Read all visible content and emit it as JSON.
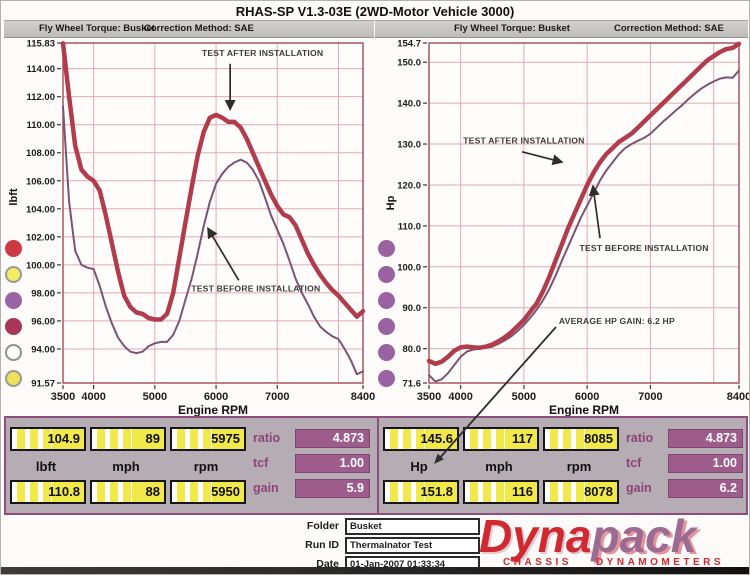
{
  "window": {
    "title": "RHAS-SP V1.3-03E (2WD-Motor Vehicle 3000)"
  },
  "header": {
    "left": {
      "torque_label": "Fly Wheel Torque: Busket",
      "correction_label": "Correction Method: SAE"
    },
    "right": {
      "torque_label": "Fly Wheel Torque: Busket",
      "correction_label": "Correction Method: SAE"
    }
  },
  "legend_dots": {
    "left": [
      {
        "fill": "#ce3a44",
        "ring": "none"
      },
      {
        "fill": "#f3ec63",
        "ring": "#999999"
      },
      {
        "fill": "#9a64a4",
        "ring": "none"
      },
      {
        "fill": "#a93658",
        "ring": "none"
      },
      {
        "fill": "#ffffff",
        "ring": "#909090"
      },
      {
        "fill": "#eee25a",
        "ring": "#999999"
      }
    ],
    "right": [
      {
        "fill": "#9a62a0",
        "ring": "none"
      },
      {
        "fill": "#9a62a0",
        "ring": "none"
      },
      {
        "fill": "#9a62a0",
        "ring": "none"
      },
      {
        "fill": "#9a62a0",
        "ring": "none"
      },
      {
        "fill": "#9a62a0",
        "ring": "none"
      },
      {
        "fill": "#9a62a0",
        "ring": "none"
      }
    ]
  },
  "chart_data": [
    {
      "type": "line",
      "title": "Fly Wheel Torque: Busket",
      "xlabel": "Engine RPM",
      "ylabel": "lbft",
      "xlim": [
        3500,
        8400
      ],
      "ylim": [
        91.57,
        115.83
      ],
      "x_start": 3500,
      "x_step": 100,
      "xticks": [
        [
          3500,
          "3500"
        ],
        [
          4000,
          "4000"
        ],
        [
          5000,
          "5000"
        ],
        [
          6000,
          "6000"
        ],
        [
          7000,
          "7000"
        ],
        [
          8400,
          "8400"
        ]
      ],
      "yticks": [
        [
          115.83,
          "115.83"
        ],
        [
          114,
          "114.00"
        ],
        [
          112,
          "112.00"
        ],
        [
          110,
          "110.00"
        ],
        [
          108,
          "108.00"
        ],
        [
          106,
          "106.00"
        ],
        [
          104,
          "104.00"
        ],
        [
          102,
          "102.00"
        ],
        [
          100,
          "100.00"
        ],
        [
          98,
          "98.00"
        ],
        [
          96,
          "96.00"
        ],
        [
          94,
          "94.00"
        ],
        [
          91.57,
          "91.57"
        ]
      ],
      "grid_x": [
        4000,
        5000,
        6000,
        7000,
        8000
      ],
      "grid_y": [
        94,
        96,
        98,
        100,
        102,
        104,
        106,
        108,
        110,
        112,
        114
      ],
      "series": [
        {
          "name": "TEST BEFORE INSTALLATION",
          "color_key": "before_curve",
          "stroke_width": 2,
          "values": [
            111.3,
            104.5,
            101.0,
            100.0,
            99.8,
            99.7,
            98.5,
            97.0,
            95.8,
            94.8,
            94.2,
            93.8,
            93.7,
            93.8,
            94.2,
            94.4,
            94.5,
            94.5,
            95.0,
            96.0,
            97.5,
            99.0,
            100.8,
            102.8,
            104.5,
            105.8,
            106.5,
            107.0,
            107.3,
            107.5,
            107.3,
            106.8,
            106.0,
            104.8,
            103.5,
            102.5,
            101.5,
            100.3,
            99.0,
            98.0,
            97.2,
            96.3,
            95.6,
            95.2,
            94.9,
            94.7,
            94.0,
            93.2,
            92.2,
            92.4
          ]
        },
        {
          "name": "TEST AFTER INSTALLATION",
          "color_key": "after_curve",
          "stroke_width": 4.5,
          "values": [
            115.8,
            112.0,
            108.5,
            106.8,
            106.3,
            106.0,
            105.3,
            103.5,
            101.5,
            99.5,
            97.8,
            97.0,
            96.6,
            96.5,
            96.2,
            96.1,
            96.1,
            96.5,
            98.0,
            100.5,
            103.0,
            105.5,
            107.8,
            109.5,
            110.5,
            110.7,
            110.5,
            110.2,
            110.2,
            109.8,
            109.0,
            108.0,
            107.0,
            106.0,
            105.0,
            104.2,
            103.6,
            103.4,
            102.8,
            101.8,
            100.8,
            100.0,
            99.3,
            98.7,
            98.2,
            97.8,
            97.3,
            96.8,
            96.3,
            96.7
          ]
        }
      ],
      "annotations": [
        {
          "text": "TEST AFTER INSTALLATION",
          "x": 6760,
          "y": 114.9,
          "arrow": [
            6230,
            114.35,
            6230,
            111.1
          ]
        },
        {
          "text": "TEST BEFORE INSTALLATION",
          "x": 6650,
          "y": 98.1,
          "arrow": [
            6370,
            98.9,
            5868,
            102.6
          ]
        }
      ]
    },
    {
      "type": "line",
      "title": "Fly Wheel Torque: Busket",
      "xlabel": "Engine RPM",
      "ylabel": "Hp",
      "xlim": [
        3500,
        8400
      ],
      "ylim": [
        71.6,
        154.7
      ],
      "x_start": 3500,
      "x_step": 100,
      "xticks": [
        [
          3500,
          "3500"
        ],
        [
          4000,
          "4000"
        ],
        [
          5000,
          "5000"
        ],
        [
          6000,
          "6000"
        ],
        [
          7000,
          "7000"
        ],
        [
          8400,
          "8400"
        ]
      ],
      "yticks": [
        [
          154.7,
          "154.7"
        ],
        [
          150,
          "150.0"
        ],
        [
          140,
          "140.0"
        ],
        [
          130,
          "130.0"
        ],
        [
          120,
          "120.0"
        ],
        [
          110,
          "110.0"
        ],
        [
          100,
          "100.0"
        ],
        [
          90,
          "90.0"
        ],
        [
          80,
          "80.0"
        ],
        [
          71.6,
          "71.6"
        ]
      ],
      "grid_x": [
        4000,
        5000,
        6000,
        7000,
        8000
      ],
      "grid_y": [
        80,
        90,
        100,
        110,
        120,
        130,
        140,
        150
      ],
      "series": [
        {
          "name": "TEST BEFORE INSTALLATION",
          "color_key": "before_curve",
          "stroke_width": 2,
          "values": [
            73.5,
            72.0,
            72.5,
            74.0,
            76.0,
            78.0,
            79.3,
            79.8,
            80.0,
            80.2,
            80.5,
            81.2,
            82.0,
            83.0,
            84.3,
            85.8,
            87.5,
            89.5,
            91.8,
            94.5,
            97.8,
            101.5,
            105.0,
            108.5,
            112.0,
            115.0,
            118.0,
            121.0,
            123.5,
            125.5,
            127.5,
            129.0,
            130.0,
            130.8,
            131.5,
            132.5,
            134.0,
            135.5,
            136.8,
            138.2,
            139.5,
            141.0,
            142.3,
            143.5,
            144.5,
            145.3,
            146.0,
            146.3,
            146.2,
            148.0
          ]
        },
        {
          "name": "TEST AFTER INSTALLATION",
          "color_key": "after_curve",
          "stroke_width": 4.5,
          "values": [
            77.0,
            76.3,
            76.8,
            78.0,
            79.5,
            80.3,
            80.5,
            80.3,
            80.2,
            80.5,
            81.0,
            81.8,
            82.8,
            84.0,
            85.5,
            87.0,
            89.0,
            91.0,
            94.0,
            97.5,
            101.5,
            105.5,
            109.5,
            113.0,
            116.5,
            120.0,
            123.0,
            125.5,
            127.5,
            129.0,
            130.5,
            131.5,
            132.5,
            134.0,
            135.5,
            137.0,
            138.5,
            140.0,
            141.5,
            143.0,
            144.5,
            146.0,
            147.5,
            149.0,
            150.5,
            151.5,
            152.5,
            153.2,
            153.5,
            154.5
          ]
        }
      ],
      "annotations": [
        {
          "text": "TEST AFTER INSTALLATION",
          "x": 5000,
          "y": 130.1,
          "arrow": [
            4970,
            128.1,
            5602,
            125.6
          ]
        },
        {
          "text": "TEST BEFORE INSTALLATION",
          "x": 6900,
          "y": 103.9,
          "arrow": [
            6203,
            107.0,
            6092,
            119.7
          ]
        },
        {
          "text": "AVERAGE HP GAIN: 6.2 HP",
          "x": 6470,
          "y": 86.0
        }
      ]
    }
  ],
  "readouts": {
    "left": {
      "top": [
        "104.9",
        "89",
        "5975"
      ],
      "units": [
        "lbft",
        "mph",
        "rpm"
      ],
      "bottom": [
        "110.8",
        "88",
        "5950"
      ],
      "stats": [
        {
          "label": "ratio",
          "value": "4.873"
        },
        {
          "label": "tcf",
          "value": "1.00"
        },
        {
          "label": "gain",
          "value": "5.9"
        }
      ]
    },
    "right": {
      "top": [
        "145.6",
        "117",
        "8085"
      ],
      "units": [
        "Hp",
        "mph",
        "rpm"
      ],
      "bottom": [
        "151.8",
        "116",
        "8078"
      ],
      "stats": [
        {
          "label": "ratio",
          "value": "4.873"
        },
        {
          "label": "tcf",
          "value": "1.00"
        },
        {
          "label": "gain",
          "value": "6.2"
        }
      ]
    }
  },
  "footer": {
    "fields": [
      {
        "label": "Folder",
        "value": "Busket"
      },
      {
        "label": "Run ID",
        "value": "Thermalnator Test"
      },
      {
        "label": "Date",
        "value": "01-Jan-2007 01:33:34"
      }
    ],
    "logo": {
      "part1": "Dyna",
      "part2": "pack",
      "sub1": "CHASSIS",
      "sub2": "DYNAMOMETERS"
    }
  },
  "colors": {
    "after_curve": "#b13c4c",
    "before_curve": "#7b5472",
    "grid": "#e2a9b0",
    "frame": "#a34a57",
    "header_bg": "#bebcba",
    "panel_bg": "#b5adb3",
    "panel_border": "#8b4f7d",
    "yellow_box": "#f1e84a",
    "purple_box": "#9d5c8c",
    "purple_text": "#8d4379",
    "logo_red": "#d02a30",
    "logo_purple": "#9c6b94"
  }
}
